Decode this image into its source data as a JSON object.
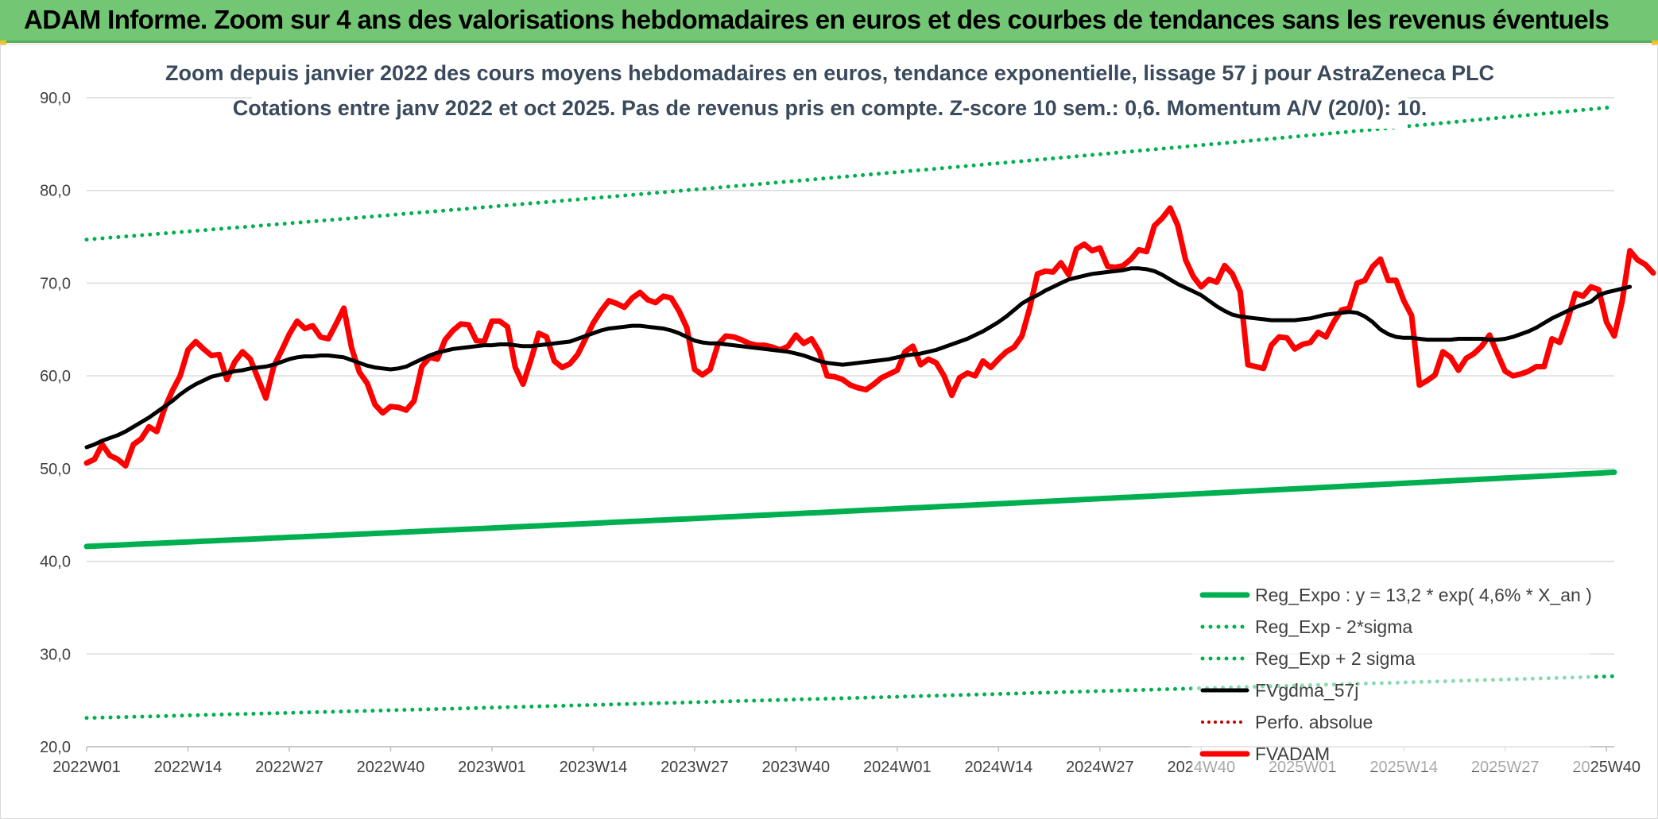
{
  "header": {
    "title": "ADAM Informe. Zoom sur 4 ans des valorisations hebdomadaires en euros et des courbes de tendances sans les revenus éventuels",
    "background_color": "#73c774"
  },
  "chart_data": {
    "type": "line",
    "title_line1": "Zoom depuis janvier 2022 des cours moyens hebdomadaires en euros, tendance exponentielle, lissage 57 j pour AstraZeneca PLC",
    "title_line2": "Cotations entre janv 2022 et oct 2025. Pas de revenus pris en compte. Z-score 10 sem.: 0,6. Momentum A/V (20/0): 10.",
    "ylim": [
      20,
      90
    ],
    "yticks": [
      20,
      30,
      40,
      50,
      60,
      70,
      80,
      90
    ],
    "ytick_labels": [
      "20,0",
      "30,0",
      "40,0",
      "50,0",
      "60,0",
      "70,0",
      "80,0",
      "90,0"
    ],
    "x_count": 197,
    "xtick_labels": [
      {
        "index": 0,
        "label": "2022W01"
      },
      {
        "index": 13,
        "label": "2022W14"
      },
      {
        "index": 26,
        "label": "2022W27"
      },
      {
        "index": 39,
        "label": "2022W40"
      },
      {
        "index": 52,
        "label": "2023W01"
      },
      {
        "index": 65,
        "label": "2023W14"
      },
      {
        "index": 78,
        "label": "2023W27"
      },
      {
        "index": 91,
        "label": "2023W40"
      },
      {
        "index": 104,
        "label": "2024W01"
      },
      {
        "index": 117,
        "label": "2024W14"
      },
      {
        "index": 130,
        "label": "2024W27"
      },
      {
        "index": 143,
        "label": "2024W40"
      },
      {
        "index": 156,
        "label": "2025W01"
      },
      {
        "index": 169,
        "label": "2025W14"
      },
      {
        "index": 182,
        "label": "2025W27"
      },
      {
        "index": 195,
        "label": "2025W40"
      }
    ],
    "grid": "horizontal",
    "legend_position": "bottom-right",
    "series": [
      {
        "name": "Reg_Expo : y = 13,2 * exp( 4,6% *  X_an )",
        "style": "solid",
        "color": "#00b050",
        "width": 7,
        "start": 41.6,
        "end": 49.6
      },
      {
        "name": "Reg_Exp - 2*sigma",
        "style": "dotted",
        "color": "#00b050",
        "width": 5,
        "start": 23.1,
        "end": 27.6
      },
      {
        "name": "Reg_Exp + 2 sigma",
        "style": "dotted",
        "color": "#00b050",
        "width": 5,
        "start": 74.7,
        "end": 89.0
      },
      {
        "name": "FVgdma_57j",
        "style": "solid",
        "color": "#000000",
        "width": 5,
        "values": [
          52.3,
          52.6,
          53.0,
          53.3,
          53.6,
          54.0,
          54.5,
          55.0,
          55.5,
          56.1,
          56.7,
          57.3,
          58.0,
          58.6,
          59.1,
          59.5,
          59.9,
          60.1,
          60.3,
          60.5,
          60.6,
          60.8,
          60.9,
          61.0,
          61.2,
          61.5,
          61.8,
          62.0,
          62.1,
          62.1,
          62.2,
          62.2,
          62.1,
          62.0,
          61.7,
          61.4,
          61.1,
          60.9,
          60.8,
          60.7,
          60.8,
          61.0,
          61.4,
          61.8,
          62.2,
          62.5,
          62.7,
          62.9,
          63.0,
          63.1,
          63.2,
          63.3,
          63.3,
          63.4,
          63.4,
          63.3,
          63.2,
          63.2,
          63.3,
          63.4,
          63.5,
          63.6,
          63.7,
          64.0,
          64.3,
          64.6,
          64.9,
          65.1,
          65.2,
          65.3,
          65.4,
          65.4,
          65.3,
          65.2,
          65.1,
          64.9,
          64.6,
          64.2,
          63.8,
          63.6,
          63.5,
          63.5,
          63.4,
          63.3,
          63.2,
          63.1,
          63.0,
          62.9,
          62.8,
          62.7,
          62.6,
          62.4,
          62.2,
          61.9,
          61.6,
          61.4,
          61.3,
          61.2,
          61.3,
          61.4,
          61.5,
          61.6,
          61.7,
          61.8,
          62.0,
          62.2,
          62.3,
          62.4,
          62.6,
          62.8,
          63.1,
          63.4,
          63.7,
          64.0,
          64.4,
          64.8,
          65.3,
          65.8,
          66.4,
          67.1,
          67.8,
          68.3,
          68.7,
          69.2,
          69.6,
          70.0,
          70.4,
          70.6,
          70.8,
          71.0,
          71.1,
          71.2,
          71.3,
          71.4,
          71.6,
          71.6,
          71.5,
          71.3,
          70.9,
          70.4,
          69.9,
          69.5,
          69.1,
          68.7,
          68.1,
          67.5,
          67.0,
          66.6,
          66.4,
          66.3,
          66.2,
          66.1,
          66.0,
          66.0,
          66.0,
          66.0,
          66.1,
          66.2,
          66.4,
          66.6,
          66.7,
          66.8,
          66.9,
          66.8,
          66.4,
          65.8,
          65.0,
          64.5,
          64.2,
          64.1,
          64.1,
          64.0,
          63.9,
          63.9,
          63.9,
          63.9,
          64.0,
          64.0,
          64.0,
          64.0,
          63.9,
          63.9,
          64.0,
          64.2,
          64.5,
          64.8,
          65.2,
          65.7,
          66.2,
          66.6,
          67.0,
          67.4,
          67.7,
          68.0,
          68.7,
          69.0,
          69.2,
          69.4,
          69.6
        ]
      },
      {
        "name": "Perfo. absolue",
        "style": "dotted",
        "color": "#c00000",
        "width": 4,
        "legend_only": true
      },
      {
        "name": "FVADAM",
        "style": "solid",
        "color": "#ff0000",
        "width": 7,
        "values": [
          50.6,
          51.0,
          52.6,
          51.4,
          51.0,
          50.3,
          52.6,
          53.2,
          54.5,
          54.0,
          56.5,
          58.4,
          60.0,
          62.8,
          63.7,
          62.9,
          62.2,
          62.3,
          59.6,
          61.5,
          62.6,
          61.8,
          59.7,
          57.6,
          61.0,
          62.7,
          64.5,
          65.9,
          65.1,
          65.4,
          64.2,
          64.0,
          65.6,
          67.3,
          63.0,
          60.4,
          59.2,
          56.9,
          56.0,
          56.7,
          56.6,
          56.3,
          57.3,
          61.0,
          62.0,
          61.8,
          63.9,
          64.9,
          65.6,
          65.5,
          63.8,
          63.7,
          65.9,
          65.9,
          65.3,
          60.9,
          59.1,
          61.7,
          64.6,
          64.2,
          61.6,
          60.9,
          61.3,
          62.3,
          64.0,
          65.7,
          67.0,
          68.1,
          67.8,
          67.4,
          68.4,
          69.0,
          68.2,
          67.9,
          68.6,
          68.4,
          67.0,
          65.2,
          60.7,
          60.1,
          60.7,
          63.4,
          64.3,
          64.2,
          63.9,
          63.5,
          63.3,
          63.3,
          63.1,
          62.8,
          63.2,
          64.4,
          63.5,
          64.0,
          62.6,
          60.0,
          59.9,
          59.6,
          59.0,
          58.7,
          58.5,
          59.1,
          59.8,
          60.2,
          60.6,
          62.6,
          63.2,
          61.2,
          61.8,
          61.4,
          60.0,
          57.9,
          59.8,
          60.3,
          60.0,
          61.6,
          60.9,
          61.8,
          62.6,
          63.1,
          64.3,
          67.3,
          71.0,
          71.3,
          71.2,
          72.2,
          70.9,
          73.7,
          74.2,
          73.5,
          73.8,
          71.8,
          71.7,
          71.9,
          72.6,
          73.6,
          73.4,
          76.2,
          77.0,
          78.1,
          76.2,
          72.5,
          70.7,
          69.6,
          70.4,
          70.1,
          71.9,
          71.0,
          69.1,
          61.2,
          61.0,
          60.8,
          63.3,
          64.2,
          64.1,
          62.9,
          63.4,
          63.6,
          64.7,
          64.2,
          65.8,
          67.1,
          67.3,
          70.0,
          70.3,
          71.8,
          72.6,
          70.3,
          70.3,
          68.1,
          66.5,
          59.0,
          59.5,
          60.1,
          62.6,
          62.0,
          60.6,
          61.9,
          62.4,
          63.2,
          64.4,
          62.4,
          60.5,
          60.0,
          60.2,
          60.5,
          61.0,
          61.0,
          64.0,
          63.6,
          66.0,
          68.9,
          68.6,
          69.6,
          69.3,
          65.8,
          64.3,
          68.0,
          73.5,
          72.5,
          72.0,
          71.1
        ]
      }
    ]
  }
}
